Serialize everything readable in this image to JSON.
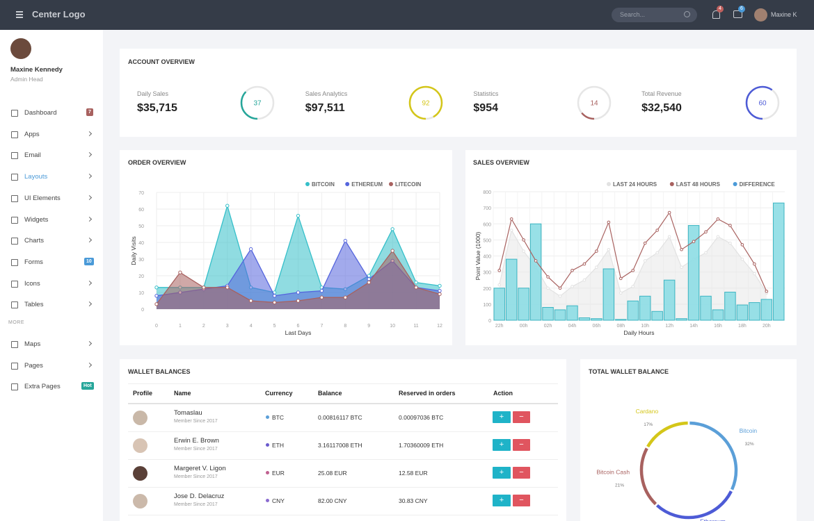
{
  "header": {
    "logo": "Center Logo",
    "search_placeholder": "Search...",
    "notifications": 4,
    "messages": 6,
    "user": "Maxine K"
  },
  "sidebar": {
    "name": "Maxine Kennedy",
    "role": "Admin Head",
    "menu": [
      {
        "label": "Dashboard",
        "badge": 7
      },
      {
        "label": "Apps"
      },
      {
        "label": "Email"
      },
      {
        "label": "Layouts"
      },
      {
        "label": "UI Elements"
      },
      {
        "label": "Widgets"
      },
      {
        "label": "Charts"
      },
      {
        "label": "Forms",
        "badge": 10
      },
      {
        "label": "Icons"
      },
      {
        "label": "Tables"
      }
    ],
    "section": "MORE",
    "more_menu": [
      {
        "label": "Maps"
      },
      {
        "label": "Pages"
      },
      {
        "label": "Extra Pages",
        "badge": "Hot"
      }
    ]
  },
  "account_overview": {
    "title": "ACCOUNT OVERVIEW",
    "stats": [
      {
        "label": "Daily Sales",
        "value": "$35,715",
        "progress": 37,
        "color": "#26a69a"
      },
      {
        "label": "Sales Analytics",
        "value": "$97,511",
        "progress": 92,
        "color": "#d4c619"
      },
      {
        "label": "Statistics",
        "value": "$954",
        "progress": 14,
        "color": "#a8615f"
      },
      {
        "label": "Total Revenue",
        "value": "$32,540",
        "progress": 60,
        "color": "#4d5bd6"
      }
    ]
  },
  "order_overview": {
    "title": "ORDER OVERVIEW",
    "type": "area",
    "x": [
      0,
      1,
      2,
      3,
      4,
      5,
      6,
      7,
      8,
      9,
      10,
      11,
      12
    ],
    "xlim": [
      0,
      12
    ],
    "xticks": [
      0,
      1,
      2,
      3,
      4,
      5,
      6,
      7,
      8,
      9,
      10,
      11,
      12
    ],
    "ylim": [
      0,
      70
    ],
    "yticks": [
      0,
      10,
      20,
      30,
      40,
      50,
      60,
      70
    ],
    "ylabel": "Daily Visits",
    "xlabel": "Last Days",
    "grid": true,
    "series": [
      {
        "name": "BITCOIN",
        "color": "#35bfc9",
        "values": [
          13,
          13,
          13,
          62,
          13,
          10,
          56,
          13,
          12,
          20,
          48,
          16,
          14
        ]
      },
      {
        "name": "ETHEREUM",
        "color": "#5565dd",
        "values": [
          8,
          10,
          12,
          14,
          36,
          8,
          10,
          11,
          41,
          18,
          29,
          13,
          11
        ]
      },
      {
        "name": "LITECOIN",
        "color": "#a8615f",
        "values": [
          3,
          22,
          13,
          13,
          5,
          4,
          5,
          7,
          7,
          16,
          35,
          13,
          9
        ]
      }
    ]
  },
  "sales_overview": {
    "title": "SALES OVERVIEW",
    "type": "bar",
    "categories": [
      "22h",
      null,
      "00h",
      null,
      "02h",
      null,
      "04h",
      null,
      "06h",
      null,
      "08h",
      null,
      "10h",
      null,
      "12h",
      null,
      "14h",
      null,
      "16h",
      null,
      "18h",
      null,
      "20h",
      null
    ],
    "ylim": [
      0,
      800
    ],
    "yticks": [
      0,
      100,
      200,
      300,
      400,
      500,
      600,
      700,
      800
    ],
    "ylabel": "Point Value (1000)",
    "xlabel": "Daily Hours",
    "grid": true,
    "series": [
      {
        "name": "LAST 24 HOURS",
        "type": "area",
        "color": "#e2e2e2",
        "values": [
          220,
          560,
          430,
          330,
          200,
          150,
          210,
          250,
          330,
          440,
          170,
          210,
          370,
          420,
          520,
          330,
          380,
          420,
          520,
          480,
          380,
          290,
          170,
          null
        ]
      },
      {
        "name": "LAST 48 HOURS",
        "type": "line",
        "color": "#a8615f",
        "values": [
          310,
          630,
          500,
          370,
          270,
          200,
          310,
          350,
          430,
          610,
          260,
          310,
          480,
          560,
          670,
          440,
          490,
          550,
          630,
          590,
          470,
          350,
          180,
          null
        ]
      },
      {
        "name": "DIFFERENCE",
        "type": "bar",
        "color": "#4a9ad8",
        "values": [
          200,
          380,
          200,
          600,
          80,
          65,
          90,
          15,
          10,
          320,
          5,
          120,
          150,
          55,
          250,
          10,
          590,
          150,
          65,
          175,
          95,
          110,
          130,
          730
        ]
      }
    ]
  },
  "wallet": {
    "title": "WALLET BALANCES",
    "columns": [
      "Profile",
      "Name",
      "Currency",
      "Balance",
      "Reserved in orders",
      "Action"
    ],
    "rows": [
      {
        "name": "Tomaslau",
        "since": "Member Since 2017",
        "currency": "BTC",
        "balance": "0.00816117 BTC",
        "reserved": "0.00097036 BTC"
      },
      {
        "name": "Erwin E. Brown",
        "since": "Member Since 2017",
        "currency": "ETH",
        "balance": "3.16117008 ETH",
        "reserved": "1.70360009 ETH"
      },
      {
        "name": "Margeret V. Ligon",
        "since": "Member Since 2017",
        "currency": "EUR",
        "balance": "25.08 EUR",
        "reserved": "12.58 EUR"
      },
      {
        "name": "Jose D. Delacruz",
        "since": "Member Since 2017",
        "currency": "CNY",
        "balance": "82.00 CNY",
        "reserved": "30.83 CNY"
      }
    ],
    "actions": [
      "+",
      "−"
    ]
  },
  "total_wallet": {
    "title": "TOTAL WALLET BALANCE",
    "type": "donut",
    "categories": [
      "Bitcoin",
      "Ethereum",
      "Bitcoin Cash",
      "Cardano"
    ],
    "values": [
      32,
      30,
      21,
      17
    ],
    "value_labels": [
      "32%",
      null,
      "21%",
      "17%"
    ],
    "colors": [
      "#5b9fd8",
      "#4d5bd6",
      "#a8615f",
      "#d4c619"
    ]
  }
}
